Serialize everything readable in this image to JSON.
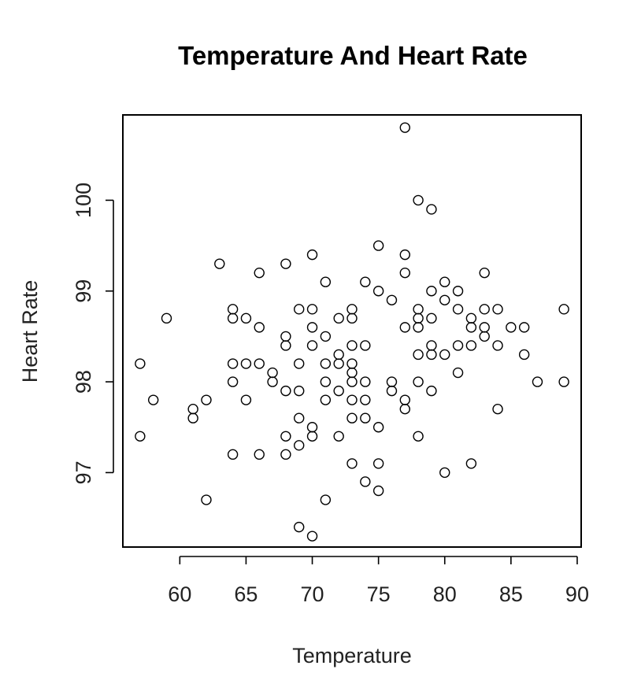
{
  "chart_data": {
    "type": "scatter",
    "title": "Temperature And Heart Rate",
    "xlabel": "Temperature",
    "ylabel": "Heart Rate",
    "xlim": [
      55.7,
      90.3
    ],
    "ylim": [
      96.18,
      100.94
    ],
    "xticks": [
      60,
      65,
      70,
      75,
      80,
      85,
      90
    ],
    "yticks": [
      97,
      98,
      99,
      100
    ],
    "x_tick_labels": [
      "60",
      "65",
      "70",
      "75",
      "80",
      "85",
      "90"
    ],
    "y_tick_labels": [
      "97",
      "98",
      "99",
      "100"
    ],
    "grid": false,
    "legend": "none",
    "marker": "open-circle",
    "points": [
      {
        "x": 57,
        "y": 98.2
      },
      {
        "x": 57,
        "y": 97.4
      },
      {
        "x": 58,
        "y": 97.8
      },
      {
        "x": 59,
        "y": 98.7
      },
      {
        "x": 61,
        "y": 97.7
      },
      {
        "x": 61,
        "y": 97.6
      },
      {
        "x": 62,
        "y": 97.8
      },
      {
        "x": 62,
        "y": 96.7
      },
      {
        "x": 63,
        "y": 99.3
      },
      {
        "x": 64,
        "y": 98.8
      },
      {
        "x": 64,
        "y": 98.7
      },
      {
        "x": 64,
        "y": 98.2
      },
      {
        "x": 64,
        "y": 98.0
      },
      {
        "x": 64,
        "y": 97.2
      },
      {
        "x": 65,
        "y": 98.7
      },
      {
        "x": 65,
        "y": 98.2
      },
      {
        "x": 65,
        "y": 97.8
      },
      {
        "x": 66,
        "y": 99.2
      },
      {
        "x": 66,
        "y": 98.6
      },
      {
        "x": 66,
        "y": 98.2
      },
      {
        "x": 66,
        "y": 97.2
      },
      {
        "x": 67,
        "y": 98.1
      },
      {
        "x": 67,
        "y": 98.0
      },
      {
        "x": 68,
        "y": 99.3
      },
      {
        "x": 68,
        "y": 98.5
      },
      {
        "x": 68,
        "y": 98.4
      },
      {
        "x": 68,
        "y": 97.9
      },
      {
        "x": 68,
        "y": 97.4
      },
      {
        "x": 68,
        "y": 97.2
      },
      {
        "x": 69,
        "y": 98.8
      },
      {
        "x": 69,
        "y": 98.2
      },
      {
        "x": 69,
        "y": 97.9
      },
      {
        "x": 69,
        "y": 97.6
      },
      {
        "x": 69,
        "y": 97.3
      },
      {
        "x": 69,
        "y": 96.4
      },
      {
        "x": 70,
        "y": 99.4
      },
      {
        "x": 70,
        "y": 98.8
      },
      {
        "x": 70,
        "y": 98.6
      },
      {
        "x": 70,
        "y": 98.4
      },
      {
        "x": 70,
        "y": 97.5
      },
      {
        "x": 70,
        "y": 97.4
      },
      {
        "x": 70,
        "y": 96.3
      },
      {
        "x": 71,
        "y": 99.1
      },
      {
        "x": 71,
        "y": 98.5
      },
      {
        "x": 71,
        "y": 98.2
      },
      {
        "x": 71,
        "y": 98.0
      },
      {
        "x": 71,
        "y": 97.8
      },
      {
        "x": 71,
        "y": 96.7
      },
      {
        "x": 72,
        "y": 98.7
      },
      {
        "x": 72,
        "y": 98.3
      },
      {
        "x": 72,
        "y": 98.2
      },
      {
        "x": 72,
        "y": 97.9
      },
      {
        "x": 72,
        "y": 97.4
      },
      {
        "x": 73,
        "y": 98.8
      },
      {
        "x": 73,
        "y": 98.7
      },
      {
        "x": 73,
        "y": 98.4
      },
      {
        "x": 73,
        "y": 98.2
      },
      {
        "x": 73,
        "y": 98.1
      },
      {
        "x": 73,
        "y": 98.0
      },
      {
        "x": 73,
        "y": 97.8
      },
      {
        "x": 73,
        "y": 97.6
      },
      {
        "x": 73,
        "y": 97.1
      },
      {
        "x": 74,
        "y": 99.1
      },
      {
        "x": 74,
        "y": 98.4
      },
      {
        "x": 74,
        "y": 98.0
      },
      {
        "x": 74,
        "y": 97.8
      },
      {
        "x": 74,
        "y": 97.6
      },
      {
        "x": 74,
        "y": 96.9
      },
      {
        "x": 75,
        "y": 99.5
      },
      {
        "x": 75,
        "y": 99.0
      },
      {
        "x": 75,
        "y": 97.5
      },
      {
        "x": 75,
        "y": 97.1
      },
      {
        "x": 75,
        "y": 96.8
      },
      {
        "x": 76,
        "y": 98.9
      },
      {
        "x": 76,
        "y": 98.0
      },
      {
        "x": 76,
        "y": 97.9
      },
      {
        "x": 77,
        "y": 100.8
      },
      {
        "x": 77,
        "y": 99.4
      },
      {
        "x": 77,
        "y": 99.2
      },
      {
        "x": 77,
        "y": 98.6
      },
      {
        "x": 77,
        "y": 97.8
      },
      {
        "x": 77,
        "y": 97.7
      },
      {
        "x": 78,
        "y": 100.0
      },
      {
        "x": 78,
        "y": 98.8
      },
      {
        "x": 78,
        "y": 98.7
      },
      {
        "x": 78,
        "y": 98.6
      },
      {
        "x": 78,
        "y": 98.3
      },
      {
        "x": 78,
        "y": 98.0
      },
      {
        "x": 78,
        "y": 97.4
      },
      {
        "x": 79,
        "y": 99.9
      },
      {
        "x": 79,
        "y": 99.0
      },
      {
        "x": 79,
        "y": 98.7
      },
      {
        "x": 79,
        "y": 98.4
      },
      {
        "x": 79,
        "y": 98.3
      },
      {
        "x": 79,
        "y": 97.9
      },
      {
        "x": 80,
        "y": 99.1
      },
      {
        "x": 80,
        "y": 98.9
      },
      {
        "x": 80,
        "y": 98.3
      },
      {
        "x": 80,
        "y": 97.0
      },
      {
        "x": 81,
        "y": 99.0
      },
      {
        "x": 81,
        "y": 98.8
      },
      {
        "x": 81,
        "y": 98.4
      },
      {
        "x": 81,
        "y": 98.1
      },
      {
        "x": 82,
        "y": 98.7
      },
      {
        "x": 82,
        "y": 98.6
      },
      {
        "x": 82,
        "y": 98.4
      },
      {
        "x": 82,
        "y": 97.1
      },
      {
        "x": 83,
        "y": 99.2
      },
      {
        "x": 83,
        "y": 98.8
      },
      {
        "x": 83,
        "y": 98.6
      },
      {
        "x": 83,
        "y": 98.5
      },
      {
        "x": 84,
        "y": 98.8
      },
      {
        "x": 84,
        "y": 98.4
      },
      {
        "x": 84,
        "y": 97.7
      },
      {
        "x": 85,
        "y": 98.6
      },
      {
        "x": 86,
        "y": 98.6
      },
      {
        "x": 86,
        "y": 98.3
      },
      {
        "x": 87,
        "y": 98.0
      },
      {
        "x": 89,
        "y": 98.8
      },
      {
        "x": 89,
        "y": 98.0
      }
    ]
  }
}
